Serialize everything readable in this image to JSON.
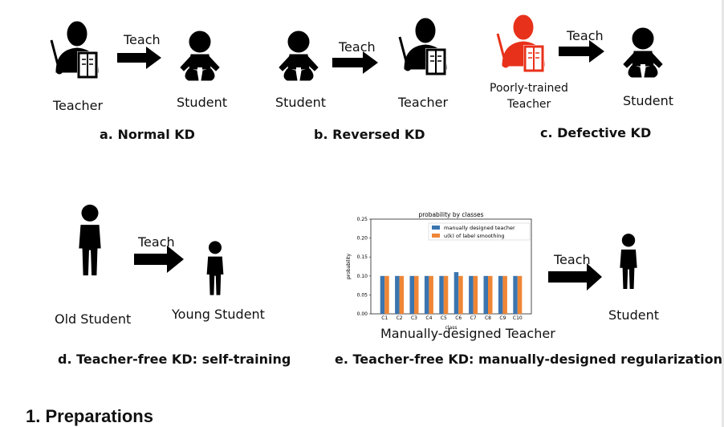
{
  "panel_a": {
    "teach": "Teach",
    "teacher": "Teacher",
    "student": "Student",
    "caption": "a. Normal KD"
  },
  "panel_b": {
    "teach": "Teach",
    "student": "Student",
    "teacher": "Teacher",
    "caption": "b. Reversed KD"
  },
  "panel_c": {
    "teach": "Teach",
    "teacher_line1": "Poorly-trained",
    "teacher_line2": "Teacher",
    "student": "Student",
    "caption": "c. Defective KD"
  },
  "panel_d": {
    "teach": "Teach",
    "old": "Old Student",
    "young": "Young Student",
    "caption": "d. Teacher-free KD: self-training"
  },
  "panel_e": {
    "teach": "Teach",
    "student": "Student",
    "teacher_label": "Manually-designed Teacher",
    "caption": "e. Teacher-free KD: manually-designed regularization"
  },
  "colors": {
    "black": "#000000",
    "red": "#e8311a",
    "blue": "#3b75af",
    "orange": "#ef8636"
  },
  "chart_data": {
    "type": "bar",
    "title": "probability by classes",
    "categories": [
      "C1",
      "C2",
      "C3",
      "C4",
      "C5",
      "C6",
      "C7",
      "C8",
      "C9",
      "C10"
    ],
    "series": [
      {
        "name": "manually designed teacher",
        "values": [
          0.1,
          0.1,
          0.1,
          0.1,
          0.1,
          0.11,
          0.1,
          0.1,
          0.1,
          0.1
        ]
      },
      {
        "name": "u(k) of label smoothing",
        "values": [
          0.1,
          0.1,
          0.1,
          0.1,
          0.1,
          0.1,
          0.1,
          0.1,
          0.1,
          0.1
        ]
      }
    ],
    "xlabel": "class",
    "ylabel": "probability",
    "ylim": [
      0,
      0.25
    ],
    "yticks": [
      "0.00",
      "0.05",
      "0.10",
      "0.15",
      "0.20",
      "0.25"
    ],
    "legend": "top-right"
  },
  "section_heading": "1. Preparations"
}
